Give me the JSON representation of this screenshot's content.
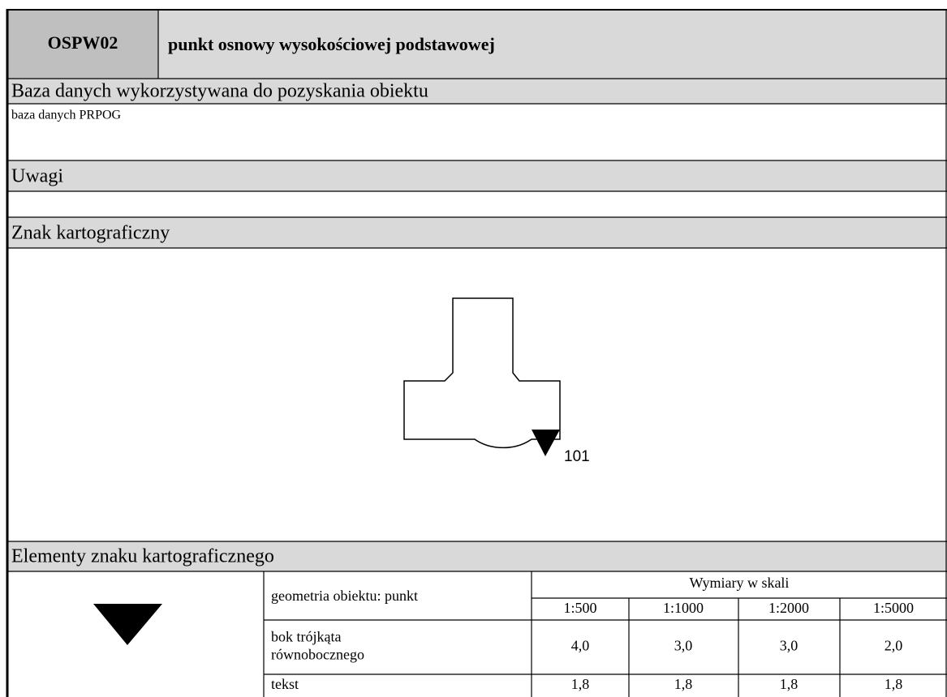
{
  "header": {
    "code": "OSPW02",
    "title": "punkt osnowy wysokościowej podstawowej"
  },
  "sections": {
    "database": {
      "heading": "Baza danych wykorzystywana do pozyskania obiektu",
      "text": "baza danych PRPOG"
    },
    "notes": {
      "heading": "Uwagi"
    },
    "symbol": {
      "heading": "Znak kartograficzny",
      "label": "101"
    },
    "elements": {
      "heading": "Elementy znaku kartograficznego"
    }
  },
  "table": {
    "geometry": "geometria obiektu: punkt",
    "dimensions_heading": "Wymiary w skali",
    "scales": [
      "1:500",
      "1:1000",
      "1:2000",
      "1:5000"
    ],
    "rows": [
      {
        "label_lines": [
          "bok trójkąta",
          "równobocznego"
        ],
        "values": [
          "4,0",
          "3,0",
          "3,0",
          "2,0"
        ]
      },
      {
        "label_lines": [
          "tekst"
        ],
        "values": [
          "1,8",
          "1,8",
          "1,8",
          "1,8"
        ]
      }
    ]
  }
}
